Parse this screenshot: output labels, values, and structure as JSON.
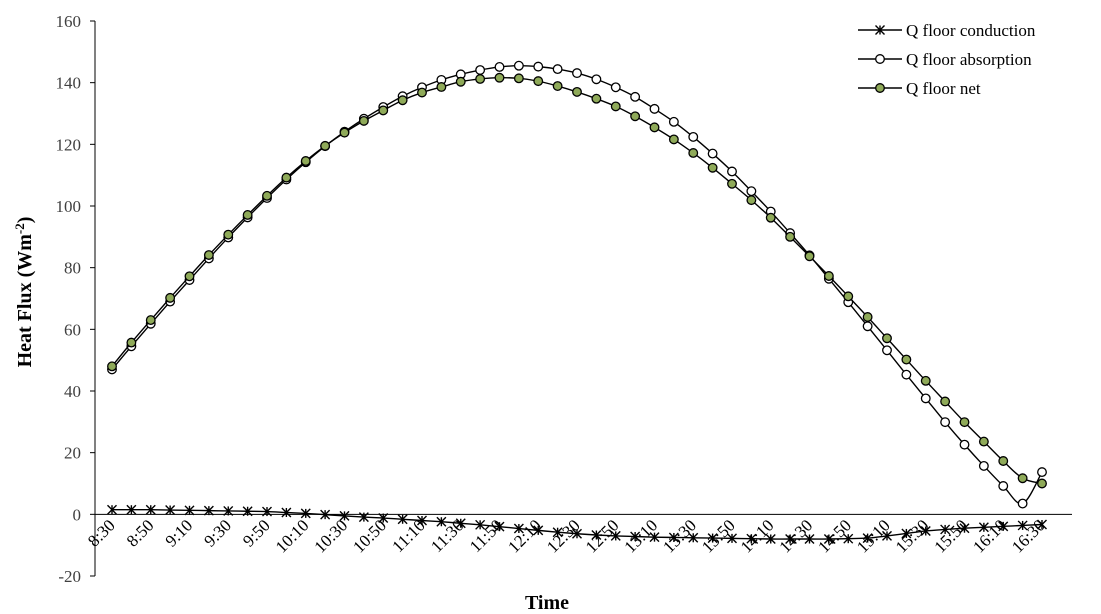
{
  "chart_data": {
    "type": "line",
    "xlabel": "Time",
    "ylabel": "Heat Flux (Wm",
    "ylabel_sup": "-2",
    "ylabel_close": ")",
    "ylim": [
      -20,
      160
    ],
    "yticks": [
      -20,
      0,
      20,
      40,
      60,
      80,
      100,
      120,
      140,
      160
    ],
    "ytick_labels": [
      "-20",
      "0",
      "20",
      "40",
      "60",
      "80",
      "100",
      "120",
      "140",
      "160"
    ],
    "x": [
      "8:30",
      "8:40",
      "8:50",
      "9:00",
      "9:10",
      "9:20",
      "9:30",
      "9:40",
      "9:50",
      "10:00",
      "10:10",
      "10:20",
      "10:30",
      "10:40",
      "10:50",
      "11:00",
      "11:10",
      "11:20",
      "11:30",
      "11:40",
      "11:50",
      "12:00",
      "12:10",
      "12:20",
      "12:30",
      "12:40",
      "12:50",
      "13:00",
      "13:10",
      "13:20",
      "13:30",
      "13:40",
      "13:50",
      "14:00",
      "14:10",
      "14:20",
      "14:30",
      "14:40",
      "14:50",
      "15:00",
      "15:10",
      "15:20",
      "15:30",
      "15:40",
      "15:50",
      "16:00",
      "16:10",
      "16:20",
      "16:30"
    ],
    "xtick_labels": [
      "8:30",
      "8:50",
      "9:10",
      "9:30",
      "9:50",
      "10:10",
      "10:30",
      "10:50",
      "11:10",
      "11:30",
      "11:50",
      "12:10",
      "12:30",
      "12:50",
      "13:10",
      "13:30",
      "13:50",
      "14:10",
      "14:30",
      "14:50",
      "15:10",
      "15:30",
      "15:50",
      "16:10",
      "16:30"
    ],
    "legend_position": "top-right",
    "grid": false,
    "series": [
      {
        "name": "Q floor conduction",
        "marker": "asterisk",
        "color": "#000000",
        "values": [
          1.5,
          1.5,
          1.5,
          1.4,
          1.3,
          1.2,
          1.1,
          1.0,
          0.9,
          0.6,
          0.3,
          -0.1,
          -0.5,
          -0.9,
          -1.2,
          -1.6,
          -2.0,
          -2.4,
          -2.9,
          -3.4,
          -4.0,
          -4.6,
          -5.2,
          -5.8,
          -6.3,
          -6.7,
          -7.0,
          -7.2,
          -7.4,
          -7.5,
          -7.6,
          -7.7,
          -7.8,
          -7.9,
          -8.0,
          -8.0,
          -8.0,
          -8.0,
          -7.9,
          -7.7,
          -7.0,
          -6.2,
          -5.4,
          -4.9,
          -4.5,
          -4.2,
          -3.9,
          -3.6,
          -3.3
        ]
      },
      {
        "name": "Q floor absorption",
        "marker": "open-circle",
        "color": "#000000",
        "values": [
          47.0,
          54.5,
          61.8,
          69.0,
          76.0,
          83.0,
          89.8,
          96.3,
          102.6,
          108.6,
          114.2,
          119.4,
          124.1,
          128.3,
          132.1,
          135.6,
          138.5,
          140.9,
          142.7,
          144.1,
          145.1,
          145.5,
          145.2,
          144.4,
          143.1,
          141.1,
          138.5,
          135.4,
          131.5,
          127.3,
          122.4,
          117.0,
          111.2,
          104.8,
          98.2,
          91.2,
          84.0,
          76.4,
          68.8,
          61.0,
          53.2,
          45.3,
          37.6,
          29.9,
          22.6,
          15.7,
          9.2,
          3.5,
          13.7
        ]
      },
      {
        "name": "Q floor net",
        "marker": "filled-circle",
        "color": "#000000",
        "fill": "#8faa59",
        "values": [
          48.0,
          55.7,
          63.0,
          70.2,
          77.2,
          84.1,
          90.7,
          97.1,
          103.3,
          109.2,
          114.6,
          119.5,
          123.8,
          127.6,
          131.0,
          134.3,
          136.8,
          138.6,
          140.3,
          141.2,
          141.6,
          141.4,
          140.5,
          138.9,
          137.0,
          134.8,
          132.3,
          129.1,
          125.5,
          121.6,
          117.2,
          112.4,
          107.2,
          101.9,
          96.2,
          90.0,
          83.7,
          77.3,
          70.7,
          64.0,
          57.1,
          50.2,
          43.3,
          36.6,
          29.9,
          23.6,
          17.3,
          11.7,
          10.0
        ]
      }
    ]
  }
}
